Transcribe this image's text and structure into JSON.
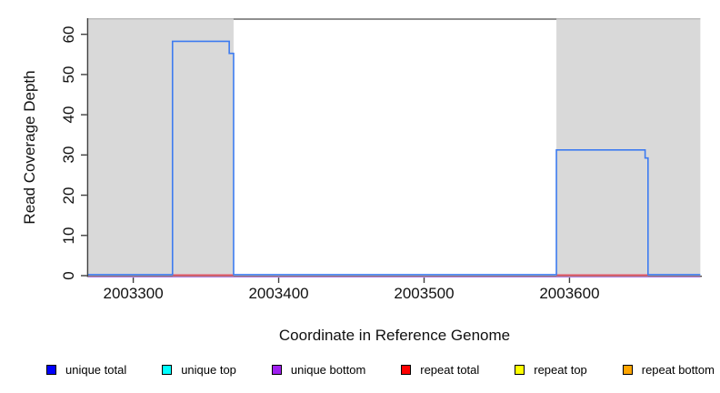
{
  "chart_data": {
    "type": "line",
    "subtype": "step-coverage",
    "title": "",
    "xlabel": "Coordinate in Reference Genome",
    "ylabel": "Read Coverage Depth",
    "xlim": [
      2003269,
      2003691
    ],
    "ylim": [
      0,
      64
    ],
    "x_ticks": [
      2003300,
      2003400,
      2003500,
      2003600
    ],
    "y_ticks": [
      0,
      10,
      20,
      30,
      40,
      50,
      60
    ],
    "grid": false,
    "legend_position": "bottom",
    "shaded_regions": [
      {
        "x0": 2003269,
        "x1": 2003369,
        "color": "#d9d9d9"
      },
      {
        "x0": 2003591,
        "x1": 2003690,
        "color": "#d9d9d9"
      }
    ],
    "series": [
      {
        "name": "unique top",
        "color": "#00e5e5",
        "segments": [
          [
            [
              2003269,
              0
            ],
            [
              2003690,
              0
            ]
          ]
        ]
      },
      {
        "name": "repeat top",
        "color": "#e5e500",
        "segments": [
          [
            [
              2003269,
              0
            ],
            [
              2003690,
              0
            ]
          ]
        ]
      },
      {
        "name": "repeat bottom",
        "color": "#f0a030",
        "segments": [
          [
            [
              2003269,
              0
            ],
            [
              2003690,
              0
            ]
          ]
        ]
      },
      {
        "name": "unique bottom",
        "color": "#b78ae6",
        "segments": [
          [
            [
              2003269,
              0
            ],
            [
              2003690,
              0
            ]
          ]
        ]
      },
      {
        "name": "repeat total",
        "color": "#e25468",
        "segments": [
          [
            [
              2003327,
              0
            ],
            [
              2003369,
              0
            ]
          ],
          [
            [
              2003591,
              0
            ],
            [
              2003654,
              0
            ]
          ]
        ]
      },
      {
        "name": "unique total",
        "color": "#3d7bf0",
        "segments": [
          [
            [
              2003269,
              0
            ],
            [
              2003327,
              0
            ],
            [
              2003327,
              58
            ],
            [
              2003366,
              58
            ],
            [
              2003366,
              55
            ],
            [
              2003369,
              55
            ],
            [
              2003369,
              0
            ],
            [
              2003591,
              0
            ],
            [
              2003591,
              31
            ],
            [
              2003652,
              31
            ],
            [
              2003652,
              29
            ],
            [
              2003654,
              29
            ],
            [
              2003654,
              0
            ],
            [
              2003690,
              0
            ]
          ]
        ]
      }
    ]
  },
  "legend": {
    "items": [
      {
        "label": "unique total",
        "color": "#0000ff"
      },
      {
        "label": "unique top",
        "color": "#00ffff"
      },
      {
        "label": "unique bottom",
        "color": "#a020f0"
      },
      {
        "label": "repeat total",
        "color": "#ff0000"
      },
      {
        "label": "repeat top",
        "color": "#ffff00"
      },
      {
        "label": "repeat bottom",
        "color": "#ffa500"
      }
    ]
  },
  "colors": {
    "background": "#ffffff",
    "shaded_region": "#d9d9d9",
    "shaded_region_top_edge": "#b9b9b9",
    "axis": "#3f3f3f",
    "top_border": "#8f8f8f",
    "tick_text": "#111111"
  }
}
